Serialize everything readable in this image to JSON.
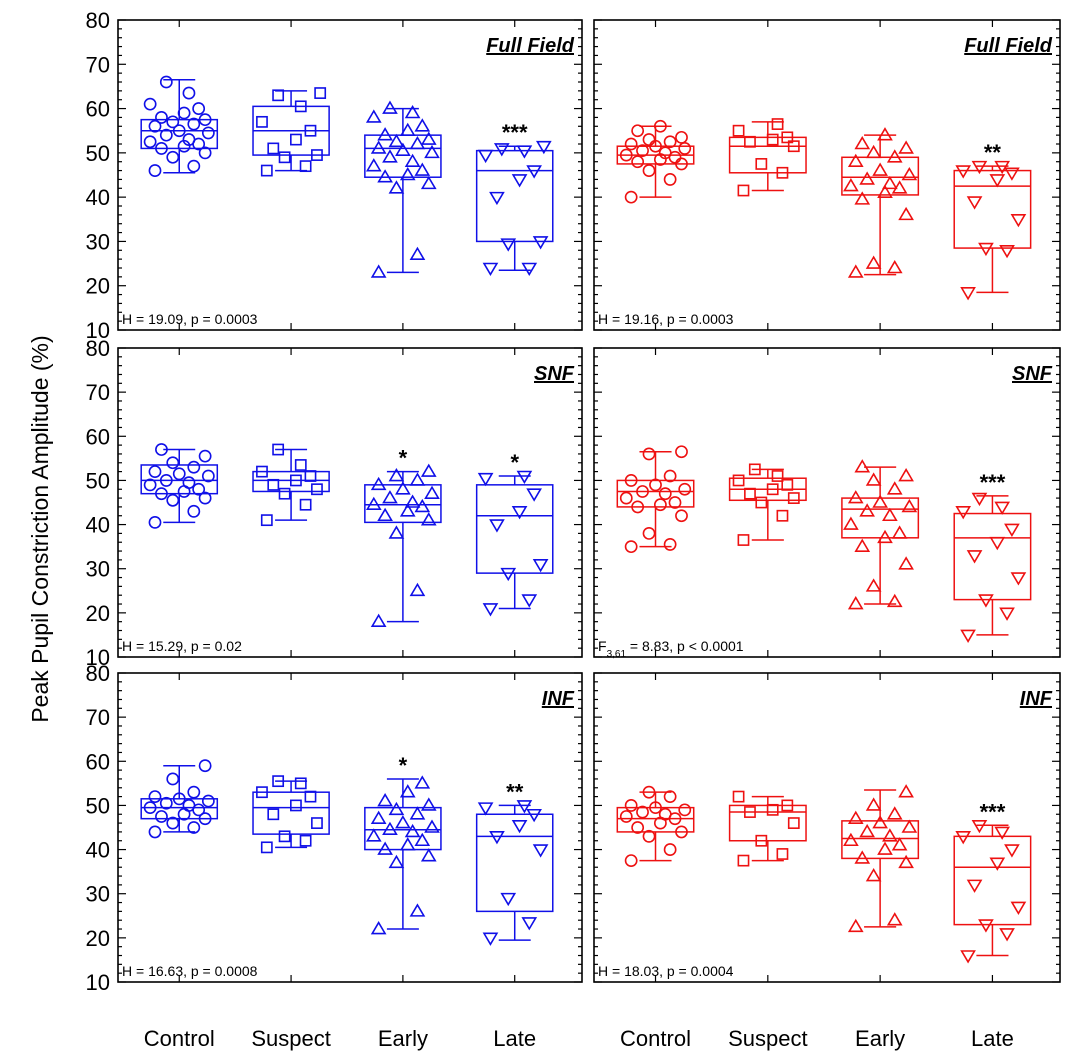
{
  "figure": {
    "ylabel": "Peak Pupil Constriction Amplitude (%)",
    "categories": [
      "Control",
      "Suspect",
      "Early",
      "Late"
    ],
    "y_ticks": [
      "80",
      "70",
      "60",
      "50",
      "40",
      "30",
      "20",
      "10"
    ]
  },
  "chart_data": [
    {
      "type": "box",
      "title": "Full Field",
      "annotation": "H = 19.09, p = 0.0003",
      "color": "#1010e8",
      "ylim": [
        10,
        80
      ],
      "categories": [
        "Control",
        "Suspect",
        "Early",
        "Late"
      ],
      "markers": [
        "circle",
        "square",
        "triangle-up",
        "triangle-down"
      ],
      "significance": [
        "",
        "",
        "",
        "***"
      ],
      "boxes": [
        {
          "min": 45.5,
          "q1": 51,
          "median": 55,
          "q3": 57.5,
          "max": 66.5
        },
        {
          "min": 46,
          "q1": 49.5,
          "median": 55,
          "q3": 60.5,
          "max": 64
        },
        {
          "min": 23,
          "q1": 44.5,
          "median": 51,
          "q3": 54,
          "max": 60
        },
        {
          "min": 23.5,
          "q1": 30,
          "median": 46,
          "q3": 50.5,
          "max": 51.5
        }
      ],
      "points": [
        [
          46,
          47,
          49,
          50,
          51,
          51.5,
          52,
          52.5,
          53,
          54,
          54.5,
          55,
          56,
          56.5,
          57,
          57.5,
          58,
          59,
          60,
          61,
          63.5,
          66
        ],
        [
          46,
          47,
          49,
          49.5,
          51,
          53,
          55,
          57,
          60.5,
          63,
          63.5
        ],
        [
          23,
          27,
          42,
          43,
          44.5,
          45,
          46,
          47,
          48,
          49,
          50,
          50.5,
          51,
          52,
          52.5,
          53,
          54,
          55,
          56,
          58,
          59,
          60
        ],
        [
          24,
          24,
          29.5,
          30,
          40,
          44,
          46,
          49.5,
          50.5,
          51,
          51.5
        ]
      ]
    },
    {
      "type": "box",
      "title": "Full Field",
      "annotation": "H = 19.16, p = 0.0003",
      "color": "#ee1111",
      "ylim": [
        10,
        80
      ],
      "categories": [
        "Control",
        "Suspect",
        "Early",
        "Late"
      ],
      "markers": [
        "circle",
        "square",
        "triangle-up",
        "triangle-down"
      ],
      "significance": [
        "",
        "",
        "",
        "**"
      ],
      "boxes": [
        {
          "min": 40,
          "q1": 47.5,
          "median": 49.5,
          "q3": 51.5,
          "max": 56
        },
        {
          "min": 41.5,
          "q1": 45.5,
          "median": 51.5,
          "q3": 53.5,
          "max": 57
        },
        {
          "min": 22.5,
          "q1": 40.5,
          "median": 44.5,
          "q3": 49,
          "max": 54
        },
        {
          "min": 18.5,
          "q1": 28.5,
          "median": 42.5,
          "q3": 46,
          "max": 47
        }
      ],
      "points": [
        [
          40,
          44,
          46,
          47.5,
          48,
          48.5,
          49,
          49.5,
          50,
          50.5,
          51,
          51.5,
          52,
          52.5,
          53,
          53.5,
          55,
          56
        ],
        [
          41.5,
          45.5,
          47.5,
          51.5,
          52.5,
          53,
          53.5,
          55,
          56.5
        ],
        [
          23,
          24,
          25,
          36,
          39.5,
          41,
          42,
          42.5,
          43,
          44,
          45,
          46,
          48,
          49,
          50,
          51,
          52,
          54
        ],
        [
          18.5,
          28,
          28.5,
          35,
          39,
          44,
          45.5,
          46,
          47,
          47
        ]
      ]
    },
    {
      "type": "box",
      "title": "SNF",
      "annotation": "H = 15.29, p = 0.02",
      "color": "#1010e8",
      "ylim": [
        10,
        80
      ],
      "categories": [
        "Control",
        "Suspect",
        "Early",
        "Late"
      ],
      "markers": [
        "circle",
        "square",
        "triangle-up",
        "triangle-down"
      ],
      "significance": [
        "",
        "",
        "*",
        "*"
      ],
      "boxes": [
        {
          "min": 40.5,
          "q1": 47,
          "median": 50,
          "q3": 53.5,
          "max": 57
        },
        {
          "min": 41,
          "q1": 47.5,
          "median": 50,
          "q3": 52,
          "max": 57
        },
        {
          "min": 18,
          "q1": 40.5,
          "median": 44.5,
          "q3": 49,
          "max": 52
        },
        {
          "min": 21,
          "q1": 29,
          "median": 42,
          "q3": 49,
          "max": 51
        }
      ],
      "points": [
        [
          40.5,
          43,
          45.5,
          46,
          47,
          47.5,
          48,
          49,
          49.5,
          50,
          51,
          51.5,
          52,
          53,
          54,
          55.5,
          57
        ],
        [
          41,
          44.5,
          47,
          48,
          49,
          50,
          51,
          52,
          53.5,
          57
        ],
        [
          18,
          25,
          38,
          41,
          42,
          43,
          44,
          44.5,
          45,
          46,
          47,
          48,
          49,
          50,
          51,
          52
        ],
        [
          21,
          23,
          29,
          31,
          40,
          43,
          47,
          50.5,
          51
        ]
      ]
    },
    {
      "type": "box",
      "title": "SNF",
      "annotation": "F3,61 = 8.83, p < 0.0001",
      "color": "#ee1111",
      "ylim": [
        10,
        80
      ],
      "categories": [
        "Control",
        "Suspect",
        "Early",
        "Late"
      ],
      "markers": [
        "circle",
        "square",
        "triangle-up",
        "triangle-down"
      ],
      "significance": [
        "",
        "",
        "",
        "***"
      ],
      "boxes": [
        {
          "min": 35,
          "q1": 44,
          "median": 47.5,
          "q3": 50,
          "max": 56.5
        },
        {
          "min": 36.5,
          "q1": 45.5,
          "median": 48,
          "q3": 50.5,
          "max": 52.5
        },
        {
          "min": 22,
          "q1": 37,
          "median": 43.5,
          "q3": 46,
          "max": 53
        },
        {
          "min": 15,
          "q1": 23,
          "median": 37,
          "q3": 42.5,
          "max": 46.5
        }
      ],
      "points": [
        [
          35,
          35.5,
          38,
          42,
          44,
          44.5,
          45,
          46,
          47,
          47.5,
          48,
          49,
          50,
          51,
          56,
          56.5
        ],
        [
          36.5,
          42,
          45,
          46,
          47,
          48,
          49,
          50,
          51,
          52.5
        ],
        [
          22,
          22.5,
          26,
          31,
          35,
          37,
          38,
          40,
          42,
          43,
          44,
          45,
          46,
          48,
          50,
          51,
          53
        ],
        [
          15,
          20,
          23,
          28,
          33,
          36,
          39,
          43,
          44,
          46
        ]
      ]
    },
    {
      "type": "box",
      "title": "INF",
      "annotation": "H = 16.63, p = 0.0008",
      "color": "#1010e8",
      "ylim": [
        10,
        80
      ],
      "categories": [
        "Control",
        "Suspect",
        "Early",
        "Late"
      ],
      "markers": [
        "circle",
        "square",
        "triangle-up",
        "triangle-down"
      ],
      "significance": [
        "",
        "",
        "*",
        "**"
      ],
      "boxes": [
        {
          "min": 44,
          "q1": 47,
          "median": 49.5,
          "q3": 51.5,
          "max": 59
        },
        {
          "min": 40.5,
          "q1": 43.5,
          "median": 49.5,
          "q3": 53,
          "max": 55.5
        },
        {
          "min": 22,
          "q1": 40,
          "median": 44.5,
          "q3": 49.5,
          "max": 56
        },
        {
          "min": 19.5,
          "q1": 26,
          "median": 43,
          "q3": 48,
          "max": 50
        }
      ],
      "points": [
        [
          44,
          45,
          46,
          47,
          47.5,
          48,
          49,
          49.5,
          50,
          50.5,
          51,
          51.5,
          52,
          53,
          56,
          59
        ],
        [
          40.5,
          42,
          43,
          46,
          48,
          50,
          52,
          53,
          55,
          55.5
        ],
        [
          22,
          26,
          37,
          38.5,
          40,
          41,
          42,
          43,
          44,
          44.5,
          45,
          46,
          47,
          48,
          49,
          50,
          51,
          53,
          55
        ],
        [
          20,
          23.5,
          29,
          40,
          43,
          45.5,
          48,
          49.5,
          50
        ]
      ]
    },
    {
      "type": "box",
      "title": "INF",
      "annotation": "H = 18.03, p = 0.0004",
      "color": "#ee1111",
      "ylim": [
        10,
        80
      ],
      "categories": [
        "Control",
        "Suspect",
        "Early",
        "Late"
      ],
      "markers": [
        "circle",
        "square",
        "triangle-up",
        "triangle-down"
      ],
      "significance": [
        "",
        "",
        "",
        "***"
      ],
      "boxes": [
        {
          "min": 37.5,
          "q1": 44,
          "median": 47,
          "q3": 49.5,
          "max": 53
        },
        {
          "min": 37.5,
          "q1": 42,
          "median": 48.5,
          "q3": 50,
          "max": 52
        },
        {
          "min": 22.5,
          "q1": 38,
          "median": 42.5,
          "q3": 46.5,
          "max": 53.5
        },
        {
          "min": 16,
          "q1": 23,
          "median": 36,
          "q3": 43,
          "max": 45.5
        }
      ],
      "points": [
        [
          37.5,
          40,
          43,
          44,
          45,
          46,
          47,
          47.5,
          48,
          48.5,
          49,
          49.5,
          50,
          52,
          53
        ],
        [
          37.5,
          39,
          42,
          46,
          48.5,
          49,
          50,
          52
        ],
        [
          22.5,
          24,
          34,
          37,
          38,
          40,
          41,
          42,
          43,
          44,
          45,
          46,
          47,
          48,
          50,
          53
        ],
        [
          16,
          21,
          23,
          27,
          32,
          37,
          40,
          43,
          44,
          45.5
        ]
      ]
    }
  ]
}
